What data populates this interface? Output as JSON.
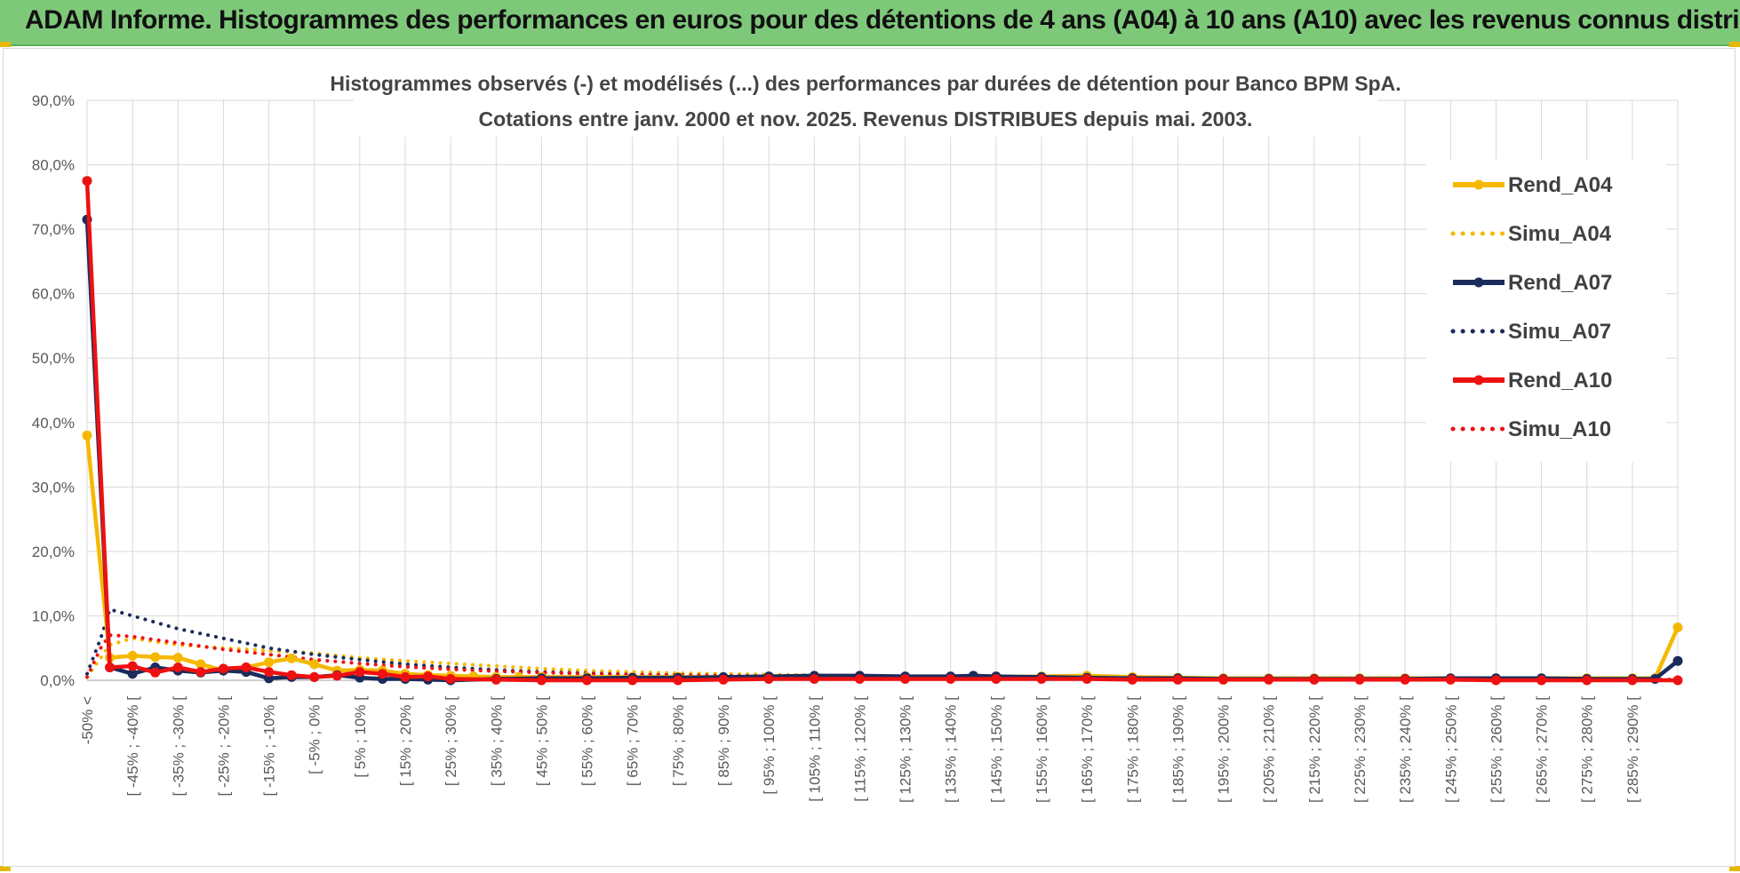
{
  "banner": {
    "title": "ADAM Informe. Histogrammes des performances en euros pour des détentions de 4 ans (A04) à 10 ans (A10) avec les revenus connus distribués"
  },
  "colors": {
    "banner_bg": "#7ec87a",
    "gold": "#f5b800",
    "navy": "#1a2b5c",
    "red": "#ee1111",
    "grid": "#d9d9d9"
  },
  "chart_data": {
    "type": "line",
    "title": "Histogrammes observés (-) et modélisés (...) des performances par durées de détention pour Banco BPM SpA.",
    "subtitle": "Cotations entre janv. 2000 et nov. 2025. Revenus DISTRIBUES depuis mai. 2003.",
    "xlabel": "",
    "ylabel": "",
    "ylim": [
      0,
      90
    ],
    "y_ticks": [
      "0,0%",
      "10,0%",
      "20,0%",
      "30,0%",
      "40,0%",
      "50,0%",
      "60,0%",
      "70,0%",
      "80,0%",
      "90,0%"
    ],
    "grid": true,
    "legend_position": "top-right",
    "x_count": 36,
    "x_tick_labels": [
      {
        "i": 0,
        "label": "-50% <"
      },
      {
        "i": 1,
        "label": "[ -45% ; -40% ["
      },
      {
        "i": 2,
        "label": "[ -35% ; -30% ["
      },
      {
        "i": 3,
        "label": "[ -25% ; -20% ["
      },
      {
        "i": 4,
        "label": "[ -15% ; -10% ["
      },
      {
        "i": 5,
        "label": "[ -5% ; 0% ["
      },
      {
        "i": 6,
        "label": "[ 5% ; 10% ["
      },
      {
        "i": 7,
        "label": "[ 15% ; 20% ["
      },
      {
        "i": 8,
        "label": "[ 25% ; 30% ["
      },
      {
        "i": 9,
        "label": "[ 35% ; 40% ["
      },
      {
        "i": 10,
        "label": "[ 45% ; 50% ["
      },
      {
        "i": 11,
        "label": "[ 55% ; 60% ["
      },
      {
        "i": 12,
        "label": "[ 65% ; 70% ["
      },
      {
        "i": 13,
        "label": "[ 75% ; 80% ["
      },
      {
        "i": 14,
        "label": "[ 85% ; 90% ["
      },
      {
        "i": 15,
        "label": "[ 95% ; 100% ["
      },
      {
        "i": 16,
        "label": "[ 105% ; 110% ["
      },
      {
        "i": 17,
        "label": "[ 115% ; 120% ["
      },
      {
        "i": 18,
        "label": "[ 125% ; 130% ["
      },
      {
        "i": 19,
        "label": "[ 135% ; 140% ["
      },
      {
        "i": 20,
        "label": "[ 145% ; 150% ["
      },
      {
        "i": 21,
        "label": "[ 155% ; 160% ["
      },
      {
        "i": 22,
        "label": "[ 165% ; 170% ["
      },
      {
        "i": 23,
        "label": "[ 175% ; 180% ["
      },
      {
        "i": 24,
        "label": "[ 185% ; 190% ["
      },
      {
        "i": 25,
        "label": "[ 195% ; 200% ["
      },
      {
        "i": 26,
        "label": "[ 205% ; 210% ["
      },
      {
        "i": 27,
        "label": "[ 215% ; 220% ["
      },
      {
        "i": 28,
        "label": "[ 225% ; 230% ["
      },
      {
        "i": 29,
        "label": "[ 235% ; 240% ["
      },
      {
        "i": 30,
        "label": "[ 245% ; 250% ["
      },
      {
        "i": 31,
        "label": "[ 255% ; 260% ["
      },
      {
        "i": 32,
        "label": "[ 265% ; 270% ["
      },
      {
        "i": 33,
        "label": "[ 275% ; 280% ["
      },
      {
        "i": 34,
        "label": "[ 285% ; 290% ["
      },
      {
        "i": 35,
        "label": ""
      }
    ],
    "series": [
      {
        "name": "Rend_A04",
        "style": "solid",
        "color": "#f5b800",
        "points": [
          [
            0,
            38.0
          ],
          [
            0.5,
            3.5
          ],
          [
            1,
            3.8
          ],
          [
            1.5,
            3.6
          ],
          [
            2,
            3.5
          ],
          [
            2.5,
            2.5
          ],
          [
            3,
            1.5
          ],
          [
            3.5,
            2.0
          ],
          [
            4,
            2.8
          ],
          [
            4.5,
            3.4
          ],
          [
            5,
            2.5
          ],
          [
            5.5,
            1.5
          ],
          [
            6,
            1.6
          ],
          [
            6.5,
            1.5
          ],
          [
            7,
            1.0
          ],
          [
            7.5,
            0.8
          ],
          [
            8,
            0.7
          ],
          [
            8.5,
            0.6
          ],
          [
            9,
            0.5
          ],
          [
            9.5,
            0.5
          ],
          [
            10,
            0.5
          ],
          [
            11,
            0.5
          ],
          [
            12,
            0.5
          ],
          [
            13,
            0.5
          ],
          [
            14,
            0.5
          ],
          [
            15,
            0.5
          ],
          [
            16,
            0.5
          ],
          [
            17,
            0.5
          ],
          [
            18,
            0.5
          ],
          [
            19,
            0.5
          ],
          [
            20,
            0.5
          ],
          [
            21,
            0.6
          ],
          [
            22,
            0.7
          ],
          [
            23,
            0.5
          ],
          [
            24,
            0.4
          ],
          [
            25,
            0.3
          ],
          [
            26,
            0.3
          ],
          [
            27,
            0.3
          ],
          [
            28,
            0.3
          ],
          [
            29,
            0.3
          ],
          [
            30,
            0.3
          ],
          [
            31,
            0.3
          ],
          [
            32,
            0.3
          ],
          [
            33,
            0.3
          ],
          [
            34,
            0.3
          ],
          [
            34.5,
            0.3
          ],
          [
            35,
            8.2
          ]
        ]
      },
      {
        "name": "Simu_A04",
        "style": "dotted",
        "color": "#f5b800",
        "points": [
          [
            0,
            0.5
          ],
          [
            0.5,
            5.5
          ],
          [
            1,
            6.5
          ],
          [
            2,
            5.5
          ],
          [
            3,
            5.0
          ],
          [
            4,
            4.6
          ],
          [
            5,
            4.2
          ],
          [
            6,
            3.5
          ],
          [
            7,
            3.0
          ],
          [
            8,
            2.6
          ],
          [
            9,
            2.2
          ],
          [
            10,
            1.8
          ],
          [
            11,
            1.5
          ],
          [
            12,
            1.3
          ],
          [
            13,
            1.1
          ],
          [
            14,
            1.0
          ],
          [
            15,
            0.9
          ],
          [
            16,
            0.8
          ],
          [
            17,
            0.7
          ],
          [
            18,
            0.6
          ],
          [
            19,
            0.5
          ],
          [
            20,
            0.5
          ],
          [
            21,
            0.4
          ],
          [
            22,
            0.4
          ],
          [
            23,
            0.3
          ],
          [
            24,
            0.3
          ],
          [
            25,
            0.3
          ],
          [
            26,
            0.2
          ],
          [
            27,
            0.2
          ],
          [
            28,
            0.2
          ],
          [
            29,
            0.2
          ],
          [
            30,
            0.2
          ],
          [
            31,
            0.2
          ],
          [
            32,
            0.1
          ],
          [
            33,
            0.1
          ],
          [
            34,
            0.1
          ],
          [
            35,
            0.1
          ]
        ]
      },
      {
        "name": "Rend_A07",
        "style": "solid",
        "color": "#1a2b5c",
        "points": [
          [
            0,
            71.5
          ],
          [
            0.5,
            2.0
          ],
          [
            1,
            1.0
          ],
          [
            1.5,
            2.0
          ],
          [
            2,
            1.5
          ],
          [
            2.5,
            1.2
          ],
          [
            3,
            1.5
          ],
          [
            3.5,
            1.3
          ],
          [
            4,
            0.3
          ],
          [
            4.5,
            0.5
          ],
          [
            5,
            0.5
          ],
          [
            5.5,
            0.8
          ],
          [
            6,
            0.4
          ],
          [
            6.5,
            0.2
          ],
          [
            7,
            0.2
          ],
          [
            7.5,
            0.1
          ],
          [
            8,
            0.0
          ],
          [
            9,
            0.2
          ],
          [
            10,
            0.3
          ],
          [
            11,
            0.3
          ],
          [
            12,
            0.4
          ],
          [
            13,
            0.4
          ],
          [
            14,
            0.5
          ],
          [
            15,
            0.6
          ],
          [
            16,
            0.7
          ],
          [
            17,
            0.7
          ],
          [
            18,
            0.6
          ],
          [
            19,
            0.6
          ],
          [
            19.5,
            0.7
          ],
          [
            20,
            0.6
          ],
          [
            21,
            0.5
          ],
          [
            22,
            0.4
          ],
          [
            23,
            0.3
          ],
          [
            24,
            0.3
          ],
          [
            25,
            0.2
          ],
          [
            26,
            0.2
          ],
          [
            27,
            0.2
          ],
          [
            28,
            0.2
          ],
          [
            29,
            0.2
          ],
          [
            30,
            0.3
          ],
          [
            31,
            0.3
          ],
          [
            32,
            0.3
          ],
          [
            33,
            0.2
          ],
          [
            34,
            0.2
          ],
          [
            34.5,
            0.2
          ],
          [
            35,
            3.0
          ]
        ]
      },
      {
        "name": "Simu_A07",
        "style": "dotted",
        "color": "#1a2b5c",
        "points": [
          [
            0,
            1.0
          ],
          [
            0.3,
            6.5
          ],
          [
            0.5,
            11.0
          ],
          [
            1,
            10.0
          ],
          [
            2,
            8.0
          ],
          [
            3,
            6.5
          ],
          [
            4,
            5.0
          ],
          [
            5,
            4.0
          ],
          [
            6,
            3.2
          ],
          [
            7,
            2.5
          ],
          [
            8,
            2.0
          ],
          [
            9,
            1.6
          ],
          [
            10,
            1.3
          ],
          [
            11,
            1.1
          ],
          [
            12,
            0.9
          ],
          [
            13,
            0.8
          ],
          [
            14,
            0.7
          ],
          [
            15,
            0.6
          ],
          [
            16,
            0.5
          ],
          [
            17,
            0.5
          ],
          [
            18,
            0.4
          ],
          [
            19,
            0.4
          ],
          [
            20,
            0.3
          ],
          [
            21,
            0.3
          ],
          [
            22,
            0.3
          ],
          [
            23,
            0.2
          ],
          [
            24,
            0.2
          ],
          [
            25,
            0.2
          ],
          [
            26,
            0.2
          ],
          [
            27,
            0.2
          ],
          [
            28,
            0.1
          ],
          [
            29,
            0.1
          ],
          [
            30,
            0.1
          ],
          [
            31,
            0.1
          ],
          [
            32,
            0.1
          ],
          [
            33,
            0.1
          ],
          [
            34,
            0.1
          ],
          [
            35,
            0.1
          ]
        ]
      },
      {
        "name": "Rend_A10",
        "style": "solid",
        "color": "#ee1111",
        "points": [
          [
            0,
            77.5
          ],
          [
            0.5,
            2.0
          ],
          [
            1,
            2.2
          ],
          [
            1.5,
            1.2
          ],
          [
            2,
            2.0
          ],
          [
            2.5,
            1.3
          ],
          [
            3,
            1.8
          ],
          [
            3.5,
            2.0
          ],
          [
            4,
            1.3
          ],
          [
            4.5,
            0.8
          ],
          [
            5,
            0.5
          ],
          [
            5.5,
            0.7
          ],
          [
            6,
            1.3
          ],
          [
            6.5,
            1.0
          ],
          [
            7,
            0.5
          ],
          [
            7.5,
            0.6
          ],
          [
            8,
            0.2
          ],
          [
            9,
            0.1
          ],
          [
            10,
            0.0
          ],
          [
            11,
            0.0
          ],
          [
            12,
            0.0
          ],
          [
            13,
            0.0
          ],
          [
            14,
            0.1
          ],
          [
            15,
            0.2
          ],
          [
            16,
            0.2
          ],
          [
            17,
            0.2
          ],
          [
            18,
            0.2
          ],
          [
            19,
            0.2
          ],
          [
            20,
            0.2
          ],
          [
            21,
            0.2
          ],
          [
            22,
            0.2
          ],
          [
            23,
            0.1
          ],
          [
            24,
            0.1
          ],
          [
            25,
            0.1
          ],
          [
            26,
            0.1
          ],
          [
            27,
            0.1
          ],
          [
            28,
            0.1
          ],
          [
            29,
            0.1
          ],
          [
            30,
            0.1
          ],
          [
            31,
            0.0
          ],
          [
            32,
            0.0
          ],
          [
            33,
            0.0
          ],
          [
            34,
            0.0
          ],
          [
            35,
            0.0
          ]
        ]
      },
      {
        "name": "Simu_A10",
        "style": "dotted",
        "color": "#ee1111",
        "points": [
          [
            0,
            0.5
          ],
          [
            0.3,
            5.0
          ],
          [
            0.5,
            7.0
          ],
          [
            1,
            6.8
          ],
          [
            2,
            5.8
          ],
          [
            3,
            4.8
          ],
          [
            4,
            4.0
          ],
          [
            5,
            3.2
          ],
          [
            6,
            2.6
          ],
          [
            7,
            2.1
          ],
          [
            8,
            1.7
          ],
          [
            9,
            1.4
          ],
          [
            10,
            1.2
          ],
          [
            11,
            1.0
          ],
          [
            12,
            0.9
          ],
          [
            13,
            0.8
          ],
          [
            14,
            0.7
          ],
          [
            15,
            0.6
          ],
          [
            16,
            0.5
          ],
          [
            17,
            0.5
          ],
          [
            18,
            0.4
          ],
          [
            19,
            0.4
          ],
          [
            20,
            0.3
          ],
          [
            21,
            0.3
          ],
          [
            22,
            0.3
          ],
          [
            23,
            0.2
          ],
          [
            24,
            0.2
          ],
          [
            25,
            0.2
          ],
          [
            26,
            0.2
          ],
          [
            27,
            0.2
          ],
          [
            28,
            0.1
          ],
          [
            29,
            0.1
          ],
          [
            30,
            0.1
          ],
          [
            31,
            0.1
          ],
          [
            32,
            0.1
          ],
          [
            33,
            0.1
          ],
          [
            34,
            0.1
          ],
          [
            35,
            0.1
          ]
        ]
      }
    ]
  }
}
